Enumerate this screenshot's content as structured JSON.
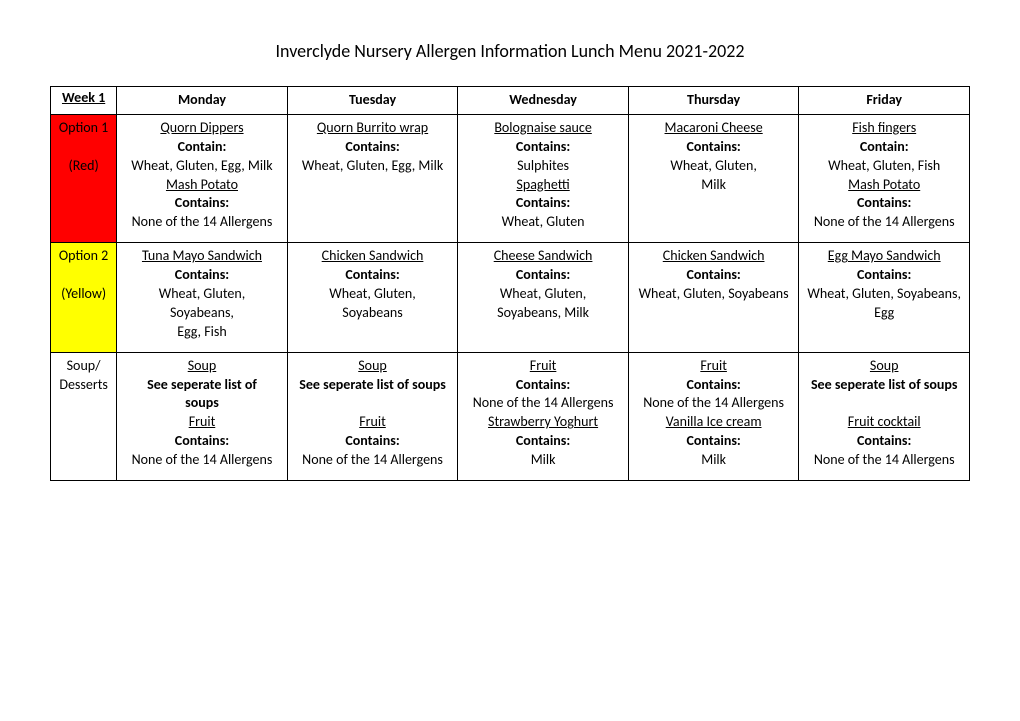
{
  "title": "Inverclyde Nursery Allergen Information Lunch Menu 2021-2022",
  "colors": {
    "red": "#ff0000",
    "yellow": "#ffff00",
    "border": "#000000",
    "bg": "#ffffff"
  },
  "table": {
    "header": {
      "row": "Week 1",
      "days": [
        "Monday",
        "Tuesday",
        "Wednesday",
        "Thursday",
        "Friday"
      ]
    },
    "rows": [
      {
        "label1": "Option 1",
        "label2": "(Red)",
        "bg": "red",
        "cells": [
          [
            {
              "t": "Quorn Dippers",
              "u": true
            },
            {
              "t": "Contain:",
              "b": true
            },
            {
              "t": "Wheat, Gluten, Egg, Milk"
            },
            {
              "t": "Mash Potato",
              "u": true
            },
            {
              "t": "Contains:",
              "b": true
            },
            {
              "t": "None of the 14 Allergens"
            }
          ],
          [
            {
              "t": "Quorn Burrito wrap",
              "u": true
            },
            {
              "t": "Contains:",
              "b": true
            },
            {
              "t": "Wheat, Gluten, Egg, Milk"
            }
          ],
          [
            {
              "t": "Bolognaise sauce",
              "u": true
            },
            {
              "t": "Contains:",
              "b": true
            },
            {
              "t": "Sulphites"
            },
            {
              "t": "Spaghetti",
              "u": true
            },
            {
              "t": "Contains:",
              "b": true
            },
            {
              "t": "Wheat, Gluten"
            }
          ],
          [
            {
              "t": "Macaroni Cheese",
              "u": true
            },
            {
              "t": "Contains:",
              "b": true
            },
            {
              "t": "Wheat, Gluten,"
            },
            {
              "t": "Milk"
            }
          ],
          [
            {
              "t": "Fish fingers",
              "u": true
            },
            {
              "t": "Contain:",
              "b": true
            },
            {
              "t": "Wheat, Gluten, Fish"
            },
            {
              "t": "Mash Potato",
              "u": true
            },
            {
              "t": "Contains:",
              "b": true
            },
            {
              "t": "None of the 14 Allergens"
            }
          ]
        ]
      },
      {
        "label1": "Option 2",
        "label2": "(Yellow)",
        "bg": "yellow",
        "cells": [
          [
            {
              "t": "Tuna Mayo Sandwich",
              "u": true
            },
            {
              "t": "Contains:",
              "b": true
            },
            {
              "t": "Wheat, Gluten,"
            },
            {
              "t": "Soyabeans,"
            },
            {
              "t": "Egg, Fish"
            }
          ],
          [
            {
              "t": "Chicken Sandwich",
              "u": true
            },
            {
              "t": "Contains:",
              "b": true
            },
            {
              "t": "Wheat, Gluten,"
            },
            {
              "t": "Soyabeans"
            }
          ],
          [
            {
              "t": "Cheese Sandwich",
              "u": true
            },
            {
              "t": "Contains:",
              "b": true
            },
            {
              "t": "Wheat, Gluten,"
            },
            {
              "t": "Soyabeans, Milk"
            }
          ],
          [
            {
              "t": "Chicken Sandwich",
              "u": true
            },
            {
              "t": "Contains:",
              "b": true
            },
            {
              "t": "Wheat, Gluten, Soyabeans"
            }
          ],
          [
            {
              "t": "Egg Mayo Sandwich",
              "u": true
            },
            {
              "t": "Contains:",
              "b": true
            },
            {
              "t": "Wheat, Gluten, Soyabeans,"
            },
            {
              "t": "Egg"
            }
          ]
        ]
      },
      {
        "label1": "Soup/",
        "label2": "Desserts",
        "bg": "none",
        "cells": [
          [
            {
              "t": "Soup",
              "u": true
            },
            {
              "t": "See seperate list of",
              "b": true
            },
            {
              "t": "soups",
              "b": true
            },
            {
              "t": "Fruit",
              "u": true
            },
            {
              "t": "Contains:",
              "b": true
            },
            {
              "t": "None of the 14 Allergens"
            }
          ],
          [
            {
              "t": "Soup",
              "u": true
            },
            {
              "t": "See seperate list of soups",
              "b": true
            },
            {
              "t": " "
            },
            {
              "t": "Fruit",
              "u": true
            },
            {
              "t": "Contains:",
              "b": true
            },
            {
              "t": "None of the 14 Allergens"
            }
          ],
          [
            {
              "t": "Fruit",
              "u": true
            },
            {
              "t": "Contains:",
              "b": true
            },
            {
              "t": "None of the 14 Allergens"
            },
            {
              "t": "Strawberry Yoghurt",
              "u": true
            },
            {
              "t": "Contains:",
              "b": true
            },
            {
              "t": "Milk"
            }
          ],
          [
            {
              "t": "Fruit",
              "u": true
            },
            {
              "t": "Contains:",
              "b": true
            },
            {
              "t": "None of the 14 Allergens"
            },
            {
              "t": "Vanilla Ice cream",
              "u": true
            },
            {
              "t": "Contains:",
              "b": true
            },
            {
              "t": "Milk"
            }
          ],
          [
            {
              "t": "Soup",
              "u": true
            },
            {
              "t": "See seperate list of soups",
              "b": true
            },
            {
              "t": " "
            },
            {
              "t": "Fruit cocktail",
              "u": true
            },
            {
              "t": "Contains:",
              "b": true
            },
            {
              "t": "None of the 14 Allergens"
            }
          ]
        ]
      }
    ]
  }
}
